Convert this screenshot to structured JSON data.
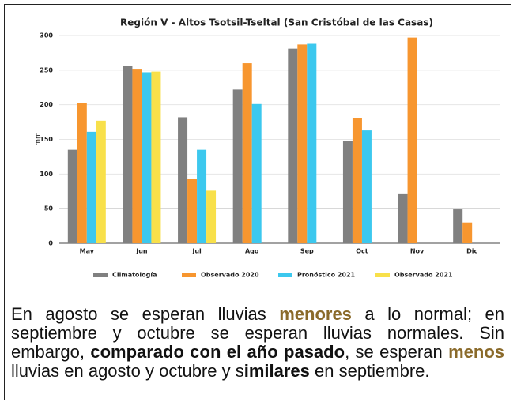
{
  "chart_data": {
    "type": "bar",
    "title": "Región V - Altos Tsotsil-Tseltal (San Cristóbal de las Casas)",
    "y_label": "mm",
    "categories": [
      "May",
      "Jun",
      "Jul",
      "Ago",
      "Sep",
      "Oct",
      "Nov",
      "Dic"
    ],
    "series": [
      {
        "name": "Climatología",
        "color": "#808080",
        "values": [
          135,
          256,
          182,
          222,
          281,
          148,
          72,
          49
        ]
      },
      {
        "name": "Observado 2020",
        "color": "#f7962f",
        "values": [
          203,
          252,
          93,
          260,
          287,
          181,
          297,
          30
        ]
      },
      {
        "name": "Pronóstico 2021",
        "color": "#3cc8ee",
        "values": [
          161,
          247,
          135,
          201,
          288,
          163,
          null,
          null
        ]
      },
      {
        "name": "Observado 2021",
        "color": "#f8e04a",
        "values": [
          177,
          248,
          76,
          null,
          null,
          null,
          null,
          null
        ]
      }
    ],
    "ylim": [
      0,
      300
    ],
    "yticks": [
      0,
      50,
      100,
      150,
      200,
      250,
      300
    ],
    "grid": true,
    "legend": "bottom"
  },
  "caption": [
    {
      "text": "En agosto se esperan lluvias "
    },
    {
      "text": "menores",
      "bold": true,
      "color": "#8a6a2a"
    },
    {
      "text": " a lo normal; en septiembre y octubre se esperan lluvias normales. Sin embargo, "
    },
    {
      "text": "comparado con el año pasado",
      "bold": true
    },
    {
      "text": ", se esperan "
    },
    {
      "text": "menos",
      "bold": true,
      "color": "#8a6a2a"
    },
    {
      "text": " lluvias en agosto y octubre y s"
    },
    {
      "text": "imilares",
      "bold": true
    },
    {
      "text": " en septiembre."
    }
  ]
}
